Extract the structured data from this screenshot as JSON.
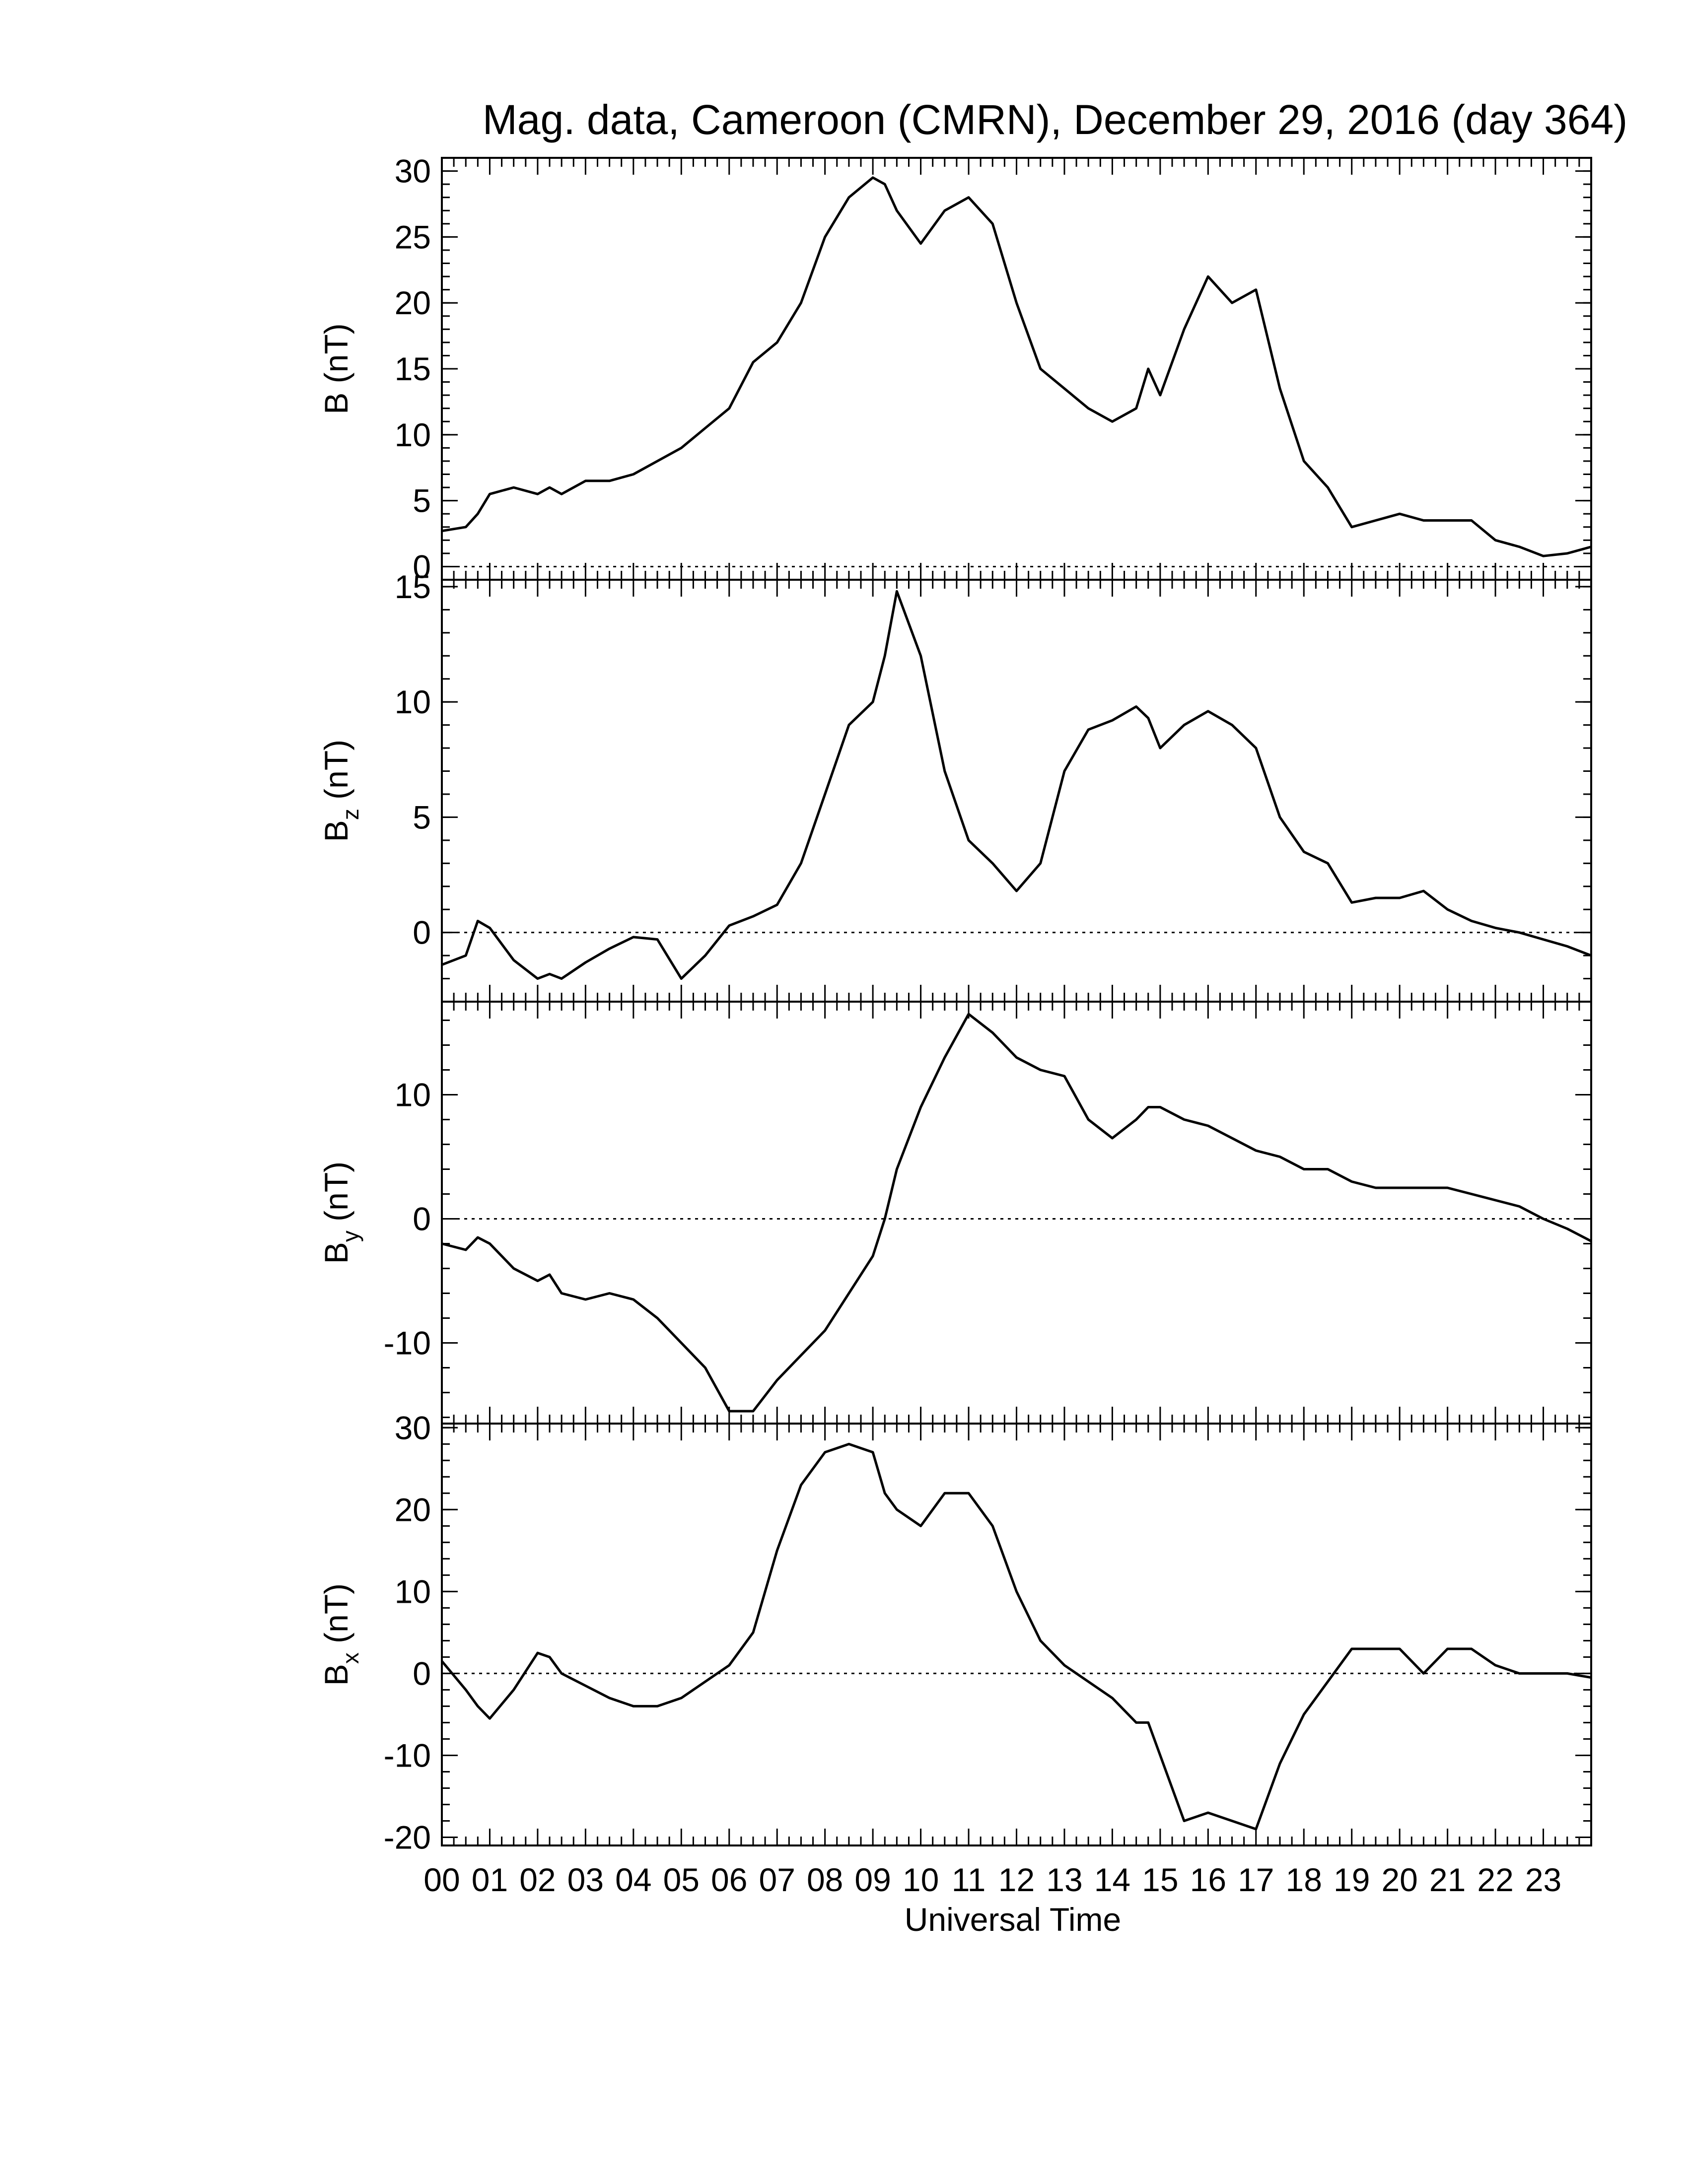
{
  "chart_data": {
    "type": "line",
    "title": "Mag. data, Cameroon (CMRN), December 29, 2016 (day 364)",
    "xlabel": "Universal Time",
    "x_unit": "hours UT",
    "xlim": [
      0,
      24
    ],
    "x_ticks": [
      "00",
      "01",
      "02",
      "03",
      "04",
      "05",
      "06",
      "07",
      "08",
      "09",
      "10",
      "11",
      "12",
      "13",
      "14",
      "15",
      "16",
      "17",
      "18",
      "19",
      "20",
      "21",
      "22",
      "23"
    ],
    "x_hours": [
      0,
      0.5,
      0.75,
      1,
      1.5,
      2,
      2.25,
      2.5,
      3,
      3.5,
      4,
      4.5,
      5,
      5.5,
      6,
      6.5,
      7,
      7.5,
      8,
      8.5,
      9,
      9.25,
      9.5,
      10,
      10.5,
      11,
      11.5,
      12,
      12.5,
      13,
      13.5,
      14,
      14.5,
      14.75,
      15,
      15.5,
      16,
      16.5,
      17,
      17.5,
      18,
      18.5,
      19,
      19.5,
      20,
      20.5,
      21,
      21.5,
      22,
      22.5,
      23,
      23.5,
      24
    ],
    "panels": [
      {
        "name": "B",
        "ylabel": "B",
        "ylabel_sub": "",
        "ylabel_unit": "(nT)",
        "ylim": [
          -1,
          31
        ],
        "yticks": [
          0,
          5,
          10,
          15,
          20,
          25,
          30
        ],
        "zero_line": true,
        "values": [
          2.7,
          3,
          4,
          5.5,
          6,
          5.5,
          6,
          5.5,
          6.5,
          6.5,
          7,
          8,
          9,
          10.5,
          12,
          15.5,
          17,
          20,
          25,
          28,
          29.5,
          29,
          27,
          24.5,
          27,
          28,
          26,
          20,
          15,
          13.5,
          12,
          11,
          12,
          15,
          13,
          18,
          22,
          20,
          21,
          13.5,
          8,
          6,
          3,
          3.5,
          4,
          3.5,
          3.5,
          3.5,
          2,
          1.5,
          0.8,
          1,
          1.5
        ]
      },
      {
        "name": "Bz",
        "ylabel": "B",
        "ylabel_sub": "z",
        "ylabel_unit": "(nT)",
        "ylim": [
          -3,
          15.3
        ],
        "yticks": [
          0,
          5,
          10,
          15
        ],
        "zero_line": true,
        "values": [
          -1.4,
          -1,
          0.5,
          0.2,
          -1.2,
          -2,
          -1.8,
          -2,
          -1.3,
          -0.7,
          -0.2,
          -0.3,
          -2,
          -1,
          0.3,
          0.7,
          1.2,
          3,
          6,
          9,
          10,
          12,
          14.8,
          12,
          7,
          4,
          3,
          1.8,
          3,
          7,
          8.8,
          9.2,
          9.8,
          9.3,
          8,
          9,
          9.6,
          9,
          8,
          5,
          3.5,
          3,
          1.3,
          1.5,
          1.5,
          1.8,
          1,
          0.5,
          0.2,
          0,
          -0.3,
          -0.6,
          -1
        ]
      },
      {
        "name": "By",
        "ylabel": "B",
        "ylabel_sub": "y",
        "ylabel_unit": "(nT)",
        "ylim": [
          -16.5,
          17.5
        ],
        "yticks": [
          -10,
          0,
          10
        ],
        "zero_line": true,
        "values": [
          -2,
          -2.5,
          -1.5,
          -2,
          -4,
          -5,
          -4.5,
          -6,
          -6.5,
          -6,
          -6.5,
          -8,
          -10,
          -12,
          -15.5,
          -15.5,
          -13,
          -11,
          -9,
          -6,
          -3,
          0,
          4,
          9,
          13,
          16.5,
          15,
          13,
          12,
          11.5,
          8,
          6.5,
          8,
          9,
          9,
          8,
          7.5,
          6.5,
          5.5,
          5,
          4,
          4,
          3,
          2.5,
          2.5,
          2.5,
          2.5,
          2,
          1.5,
          1,
          0,
          -0.8,
          -1.8
        ]
      },
      {
        "name": "Bx",
        "ylabel": "B",
        "ylabel_sub": "x",
        "ylabel_unit": "(nT)",
        "ylim": [
          -21,
          30.5
        ],
        "yticks": [
          -20,
          -10,
          0,
          10,
          20,
          30
        ],
        "zero_line": true,
        "values": [
          1.5,
          -2,
          -4,
          -5.5,
          -2,
          2.5,
          2,
          0,
          -1.5,
          -3,
          -4,
          -4,
          -3,
          -1,
          1,
          5,
          15,
          23,
          27,
          28,
          27,
          22,
          20,
          18,
          22,
          22,
          18,
          10,
          4,
          1,
          -1,
          -3,
          -6,
          -6,
          -10,
          -18,
          -17,
          -18,
          -19,
          -11,
          -5,
          -1,
          3,
          3,
          3,
          0,
          3,
          3,
          1,
          0,
          0,
          0,
          -0.5
        ]
      }
    ],
    "grid": false,
    "legend": "none"
  }
}
